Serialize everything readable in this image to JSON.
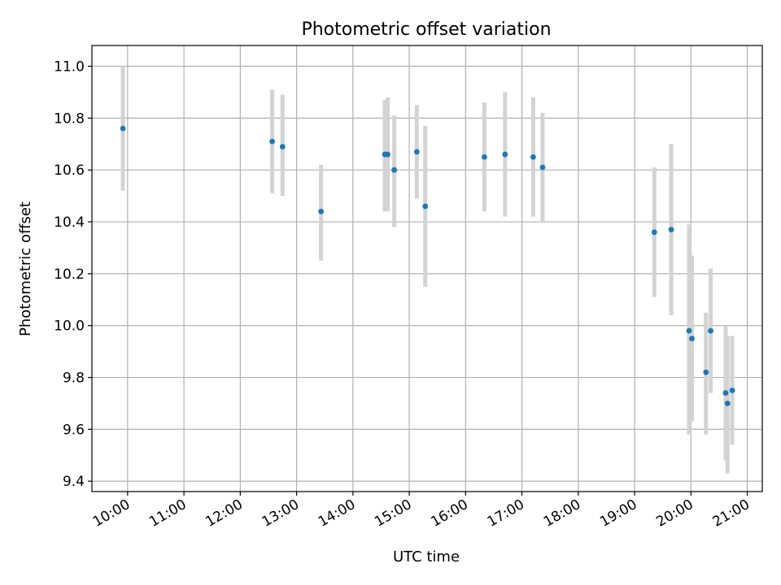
{
  "chart_data": {
    "type": "scatter",
    "title": "Photometric offset variation",
    "xlabel": "UTC time",
    "ylabel": "Photometric offset",
    "xlim": [
      "09:22",
      "21:16"
    ],
    "ylim": [
      9.36,
      11.08
    ],
    "grid": true,
    "x_ticks": [
      "10:00",
      "11:00",
      "12:00",
      "13:00",
      "14:00",
      "15:00",
      "16:00",
      "17:00",
      "18:00",
      "19:00",
      "20:00",
      "21:00"
    ],
    "y_ticks": [
      9.4,
      9.6,
      9.8,
      10.0,
      10.2,
      10.4,
      10.6,
      10.8,
      11.0
    ],
    "y_tick_labels": [
      "9.4",
      "9.6",
      "9.8",
      "10.0",
      "10.2",
      "10.4",
      "10.6",
      "10.8",
      "11.0"
    ],
    "point_color": "#1f77b4",
    "errorbar_color": "#d3d3d3",
    "points": [
      {
        "x": "09:55",
        "y": 10.76,
        "low": 10.52,
        "high": 11.0
      },
      {
        "x": "12:34",
        "y": 10.71,
        "low": 10.51,
        "high": 10.91
      },
      {
        "x": "12:45",
        "y": 10.69,
        "low": 10.5,
        "high": 10.89
      },
      {
        "x": "13:26",
        "y": 10.44,
        "low": 10.25,
        "high": 10.62
      },
      {
        "x": "14:34",
        "y": 10.66,
        "low": 10.44,
        "high": 10.87
      },
      {
        "x": "14:37",
        "y": 10.66,
        "low": 10.44,
        "high": 10.88
      },
      {
        "x": "14:44",
        "y": 10.6,
        "low": 10.38,
        "high": 10.81
      },
      {
        "x": "15:08",
        "y": 10.67,
        "low": 10.49,
        "high": 10.85
      },
      {
        "x": "15:17",
        "y": 10.46,
        "low": 10.15,
        "high": 10.77
      },
      {
        "x": "16:20",
        "y": 10.65,
        "low": 10.44,
        "high": 10.86
      },
      {
        "x": "16:42",
        "y": 10.66,
        "low": 10.42,
        "high": 10.9
      },
      {
        "x": "17:12",
        "y": 10.65,
        "low": 10.42,
        "high": 10.88
      },
      {
        "x": "17:22",
        "y": 10.61,
        "low": 10.4,
        "high": 10.82
      },
      {
        "x": "19:21",
        "y": 10.36,
        "low": 10.11,
        "high": 10.61
      },
      {
        "x": "19:39",
        "y": 10.37,
        "low": 10.04,
        "high": 10.7
      },
      {
        "x": "19:58",
        "y": 9.98,
        "low": 9.58,
        "high": 10.39
      },
      {
        "x": "20:01",
        "y": 9.95,
        "low": 9.63,
        "high": 10.27
      },
      {
        "x": "20:16",
        "y": 9.82,
        "low": 9.58,
        "high": 10.05
      },
      {
        "x": "20:21",
        "y": 9.98,
        "low": 9.74,
        "high": 10.22
      },
      {
        "x": "20:37",
        "y": 9.74,
        "low": 9.48,
        "high": 10.0
      },
      {
        "x": "20:39",
        "y": 9.7,
        "low": 9.43,
        "high": 9.96
      },
      {
        "x": "20:44",
        "y": 9.75,
        "low": 9.54,
        "high": 9.96
      }
    ]
  }
}
